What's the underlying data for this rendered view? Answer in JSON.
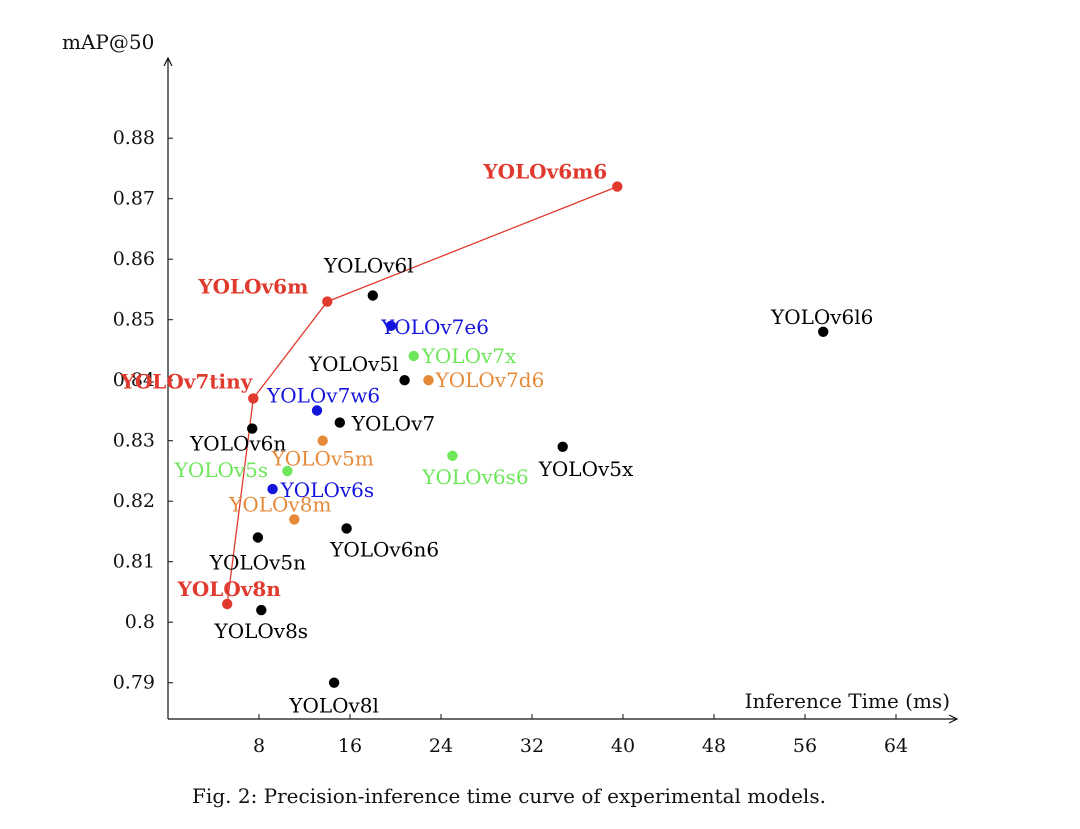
{
  "chart_data": {
    "type": "scatter",
    "xlabel": "Inference Time (ms)",
    "ylabel": "mAP@50",
    "xlim": [
      0,
      70
    ],
    "ylim": [
      0.784,
      0.894
    ],
    "x_ticks": [
      8,
      16,
      24,
      32,
      40,
      48,
      56,
      64
    ],
    "y_ticks": [
      0.79,
      0.8,
      0.81,
      0.82,
      0.83,
      0.84,
      0.85,
      0.86,
      0.87,
      0.88
    ],
    "y_tick_labels": [
      "0.79",
      "0.8",
      "0.81",
      "0.82",
      "0.83",
      "0.84",
      "0.85",
      "0.86",
      "0.87",
      "0.88"
    ],
    "grid": false,
    "colors": {
      "black": "#000000",
      "red": "#e03a2f",
      "blue": "#1414dc",
      "green": "#6ee65a",
      "orange": "#e68a3a"
    },
    "pareto_curve": {
      "color": "#e03a2f",
      "points": [
        "YOLOv8n",
        "YOLOv7tiny",
        "YOLOv6m",
        "YOLOv6m6"
      ]
    },
    "points": [
      {
        "label": "YOLOv6m6",
        "x": 39.5,
        "y": 0.872,
        "color": "red",
        "bold": true
      },
      {
        "label": "YOLOv6m",
        "x": 14.0,
        "y": 0.853,
        "color": "red",
        "bold": true
      },
      {
        "label": "YOLOv7tiny",
        "x": 7.5,
        "y": 0.837,
        "color": "red",
        "bold": true
      },
      {
        "label": "YOLOv8n",
        "x": 5.2,
        "y": 0.803,
        "color": "red",
        "bold": true
      },
      {
        "label": "YOLOv6l",
        "x": 18.0,
        "y": 0.854,
        "color": "black"
      },
      {
        "label": "YOLOv6l6",
        "x": 57.6,
        "y": 0.848,
        "color": "black"
      },
      {
        "label": "YOLOv5l",
        "x": 20.8,
        "y": 0.84,
        "color": "black"
      },
      {
        "label": "YOLOv7",
        "x": 15.1,
        "y": 0.833,
        "color": "black"
      },
      {
        "label": "YOLOv6n",
        "x": 7.4,
        "y": 0.832,
        "color": "black"
      },
      {
        "label": "YOLOv5x",
        "x": 34.7,
        "y": 0.829,
        "color": "black"
      },
      {
        "label": "YOLOv5n",
        "x": 7.9,
        "y": 0.814,
        "color": "black"
      },
      {
        "label": "YOLOv6n6",
        "x": 15.7,
        "y": 0.8155,
        "color": "black"
      },
      {
        "label": "YOLOv8s",
        "x": 8.2,
        "y": 0.802,
        "color": "black"
      },
      {
        "label": "YOLOv8l",
        "x": 14.6,
        "y": 0.79,
        "color": "black"
      },
      {
        "label": "YOLOv7e6",
        "x": 19.6,
        "y": 0.849,
        "color": "blue"
      },
      {
        "label": "YOLOv7w6",
        "x": 13.1,
        "y": 0.835,
        "color": "blue"
      },
      {
        "label": "YOLOv6s",
        "x": 9.2,
        "y": 0.822,
        "color": "blue"
      },
      {
        "label": "YOLOv7x",
        "x": 21.6,
        "y": 0.844,
        "color": "green"
      },
      {
        "label": "YOLOv6s6",
        "x": 25.0,
        "y": 0.8275,
        "color": "green"
      },
      {
        "label": "YOLOv5s",
        "x": 10.5,
        "y": 0.825,
        "color": "green"
      },
      {
        "label": "YOLOv7d6",
        "x": 22.9,
        "y": 0.84,
        "color": "orange"
      },
      {
        "label": "YOLOv5m",
        "x": 13.6,
        "y": 0.83,
        "color": "orange"
      },
      {
        "label": "YOLOv8m",
        "x": 11.1,
        "y": 0.817,
        "color": "orange"
      }
    ]
  },
  "caption": "Fig. 2: Precision-inference time curve of experimental models."
}
